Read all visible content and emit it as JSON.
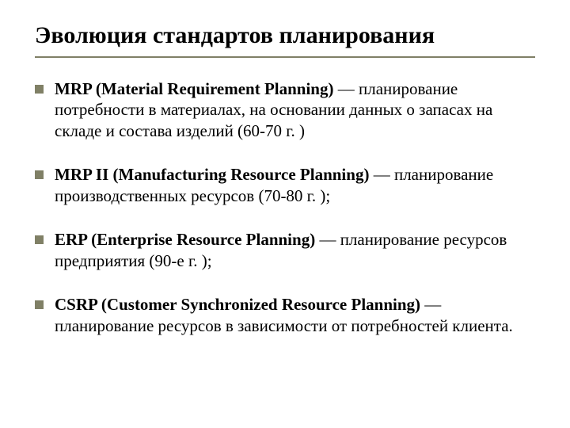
{
  "title": "Эволюция стандартов планирования",
  "accent_color": "#808066",
  "text_color": "#000000",
  "background_color": "#ffffff",
  "font_family": "Times New Roman",
  "title_fontsize": 30,
  "body_fontsize": 21,
  "bullets": [
    {
      "bold": "MRP (Material Requirement Planning)",
      "rest": " — планирование потребности в материалах, на основании данных о запасах на складе и состава изделий (60-70 г. )"
    },
    {
      "bold": "MRP II (Manufacturing Resource Planning)",
      "rest": " — планирование производственных ресурсов  (70-80 г. );"
    },
    {
      "bold": "ERP (Enterprise Resource Planning)",
      "rest": " — планирование ресурсов предприятия (90-е г. );"
    },
    {
      "bold": "CSRP (Customer Synchronized Resource Planning)",
      "rest": " — планирование ресурсов в зависимости от потребностей клиента."
    }
  ]
}
